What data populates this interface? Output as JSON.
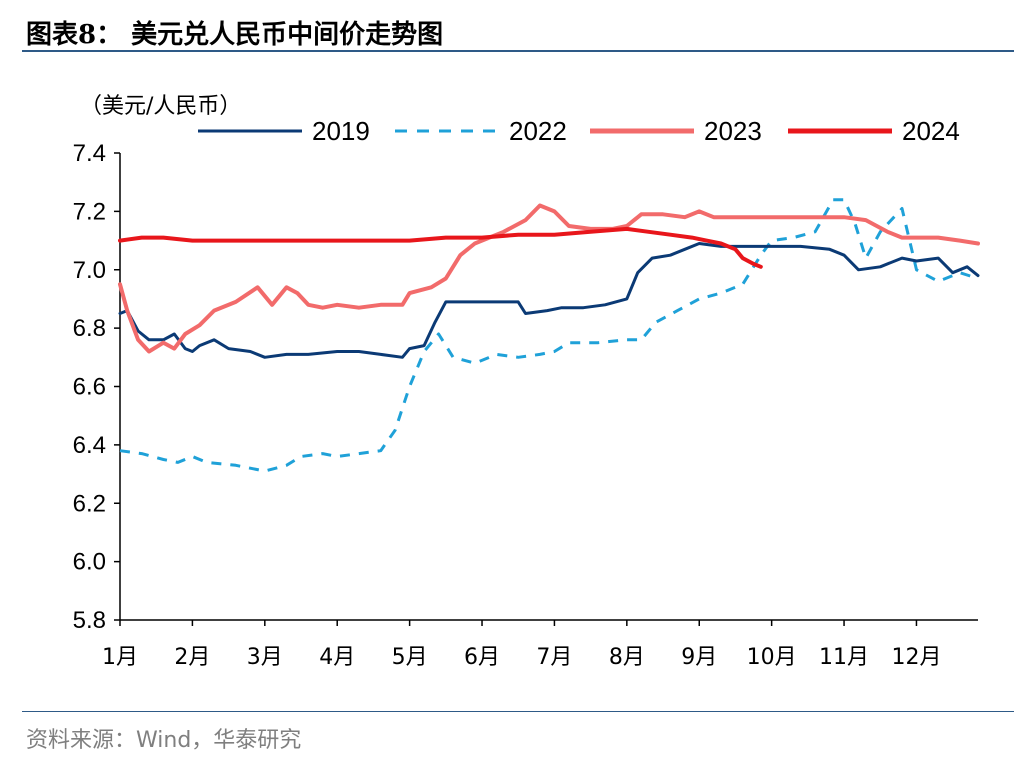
{
  "header": {
    "title": "图表8：  美元兑人民币中间价走势图"
  },
  "footer": {
    "source": "资料来源：Wind，华泰研究"
  },
  "chart_data": {
    "type": "line",
    "unit_label": "（美元/人民币）",
    "ylim": [
      5.8,
      7.4
    ],
    "yticks": [
      "7.4",
      "7.2",
      "7.0",
      "6.8",
      "6.6",
      "6.4",
      "6.2",
      "6.0",
      "5.8"
    ],
    "x_months": [
      "1月",
      "2月",
      "3月",
      "4月",
      "5月",
      "6月",
      "7月",
      "8月",
      "9月",
      "10月",
      "11月",
      "12月"
    ],
    "grid": false,
    "legend_position": "top",
    "series": [
      {
        "name": "2019",
        "color": "#0b3a75",
        "style": "solid",
        "points": [
          [
            1.0,
            6.85
          ],
          [
            1.1,
            6.86
          ],
          [
            1.25,
            6.79
          ],
          [
            1.4,
            6.76
          ],
          [
            1.6,
            6.76
          ],
          [
            1.75,
            6.78
          ],
          [
            1.9,
            6.73
          ],
          [
            2.0,
            6.72
          ],
          [
            2.1,
            6.74
          ],
          [
            2.3,
            6.76
          ],
          [
            2.5,
            6.73
          ],
          [
            2.8,
            6.72
          ],
          [
            3.0,
            6.7
          ],
          [
            3.3,
            6.71
          ],
          [
            3.6,
            6.71
          ],
          [
            4.0,
            6.72
          ],
          [
            4.3,
            6.72
          ],
          [
            4.6,
            6.71
          ],
          [
            4.9,
            6.7
          ],
          [
            5.0,
            6.73
          ],
          [
            5.2,
            6.74
          ],
          [
            5.35,
            6.82
          ],
          [
            5.5,
            6.89
          ],
          [
            5.8,
            6.89
          ],
          [
            6.1,
            6.89
          ],
          [
            6.5,
            6.89
          ],
          [
            6.6,
            6.85
          ],
          [
            6.9,
            6.86
          ],
          [
            7.1,
            6.87
          ],
          [
            7.4,
            6.87
          ],
          [
            7.7,
            6.88
          ],
          [
            8.0,
            6.9
          ],
          [
            8.15,
            6.99
          ],
          [
            8.35,
            7.04
          ],
          [
            8.6,
            7.05
          ],
          [
            8.8,
            7.07
          ],
          [
            9.0,
            7.09
          ],
          [
            9.3,
            7.08
          ],
          [
            9.6,
            7.08
          ],
          [
            10.0,
            7.08
          ],
          [
            10.4,
            7.08
          ],
          [
            10.8,
            7.07
          ],
          [
            11.0,
            7.05
          ],
          [
            11.2,
            7.0
          ],
          [
            11.5,
            7.01
          ],
          [
            11.8,
            7.04
          ],
          [
            12.0,
            7.03
          ],
          [
            12.3,
            7.04
          ],
          [
            12.5,
            6.99
          ],
          [
            12.7,
            7.01
          ],
          [
            12.85,
            6.98
          ]
        ]
      },
      {
        "name": "2022",
        "color": "#1fa1d8",
        "style": "dashed",
        "points": [
          [
            1.0,
            6.38
          ],
          [
            1.3,
            6.37
          ],
          [
            1.6,
            6.35
          ],
          [
            1.8,
            6.34
          ],
          [
            2.0,
            6.36
          ],
          [
            2.2,
            6.34
          ],
          [
            2.6,
            6.33
          ],
          [
            3.0,
            6.31
          ],
          [
            3.3,
            6.33
          ],
          [
            3.5,
            6.36
          ],
          [
            3.8,
            6.37
          ],
          [
            4.0,
            6.36
          ],
          [
            4.3,
            6.37
          ],
          [
            4.6,
            6.38
          ],
          [
            4.8,
            6.45
          ],
          [
            5.0,
            6.6
          ],
          [
            5.2,
            6.72
          ],
          [
            5.4,
            6.78
          ],
          [
            5.6,
            6.7
          ],
          [
            5.9,
            6.68
          ],
          [
            6.2,
            6.71
          ],
          [
            6.5,
            6.7
          ],
          [
            6.8,
            6.71
          ],
          [
            7.0,
            6.72
          ],
          [
            7.2,
            6.75
          ],
          [
            7.6,
            6.75
          ],
          [
            8.0,
            6.76
          ],
          [
            8.2,
            6.76
          ],
          [
            8.4,
            6.82
          ],
          [
            8.7,
            6.86
          ],
          [
            9.0,
            6.9
          ],
          [
            9.3,
            6.92
          ],
          [
            9.6,
            6.95
          ],
          [
            9.85,
            7.05
          ],
          [
            10.0,
            7.1
          ],
          [
            10.3,
            7.11
          ],
          [
            10.6,
            7.13
          ],
          [
            10.85,
            7.24
          ],
          [
            11.0,
            7.24
          ],
          [
            11.15,
            7.16
          ],
          [
            11.3,
            7.04
          ],
          [
            11.5,
            7.13
          ],
          [
            11.8,
            7.21
          ],
          [
            12.0,
            7.0
          ],
          [
            12.3,
            6.96
          ],
          [
            12.6,
            6.99
          ],
          [
            12.85,
            6.97
          ]
        ]
      },
      {
        "name": "2023",
        "color": "#f26b6b",
        "style": "solid",
        "points": [
          [
            1.0,
            6.95
          ],
          [
            1.1,
            6.86
          ],
          [
            1.25,
            6.76
          ],
          [
            1.4,
            6.72
          ],
          [
            1.6,
            6.75
          ],
          [
            1.75,
            6.73
          ],
          [
            1.9,
            6.78
          ],
          [
            2.1,
            6.81
          ],
          [
            2.3,
            6.86
          ],
          [
            2.6,
            6.89
          ],
          [
            2.9,
            6.94
          ],
          [
            3.1,
            6.88
          ],
          [
            3.3,
            6.94
          ],
          [
            3.45,
            6.92
          ],
          [
            3.6,
            6.88
          ],
          [
            3.8,
            6.87
          ],
          [
            4.0,
            6.88
          ],
          [
            4.3,
            6.87
          ],
          [
            4.6,
            6.88
          ],
          [
            4.9,
            6.88
          ],
          [
            5.0,
            6.92
          ],
          [
            5.3,
            6.94
          ],
          [
            5.5,
            6.97
          ],
          [
            5.7,
            7.05
          ],
          [
            5.9,
            7.09
          ],
          [
            6.1,
            7.11
          ],
          [
            6.3,
            7.13
          ],
          [
            6.6,
            7.17
          ],
          [
            6.8,
            7.22
          ],
          [
            7.0,
            7.2
          ],
          [
            7.2,
            7.15
          ],
          [
            7.5,
            7.14
          ],
          [
            7.8,
            7.14
          ],
          [
            8.0,
            7.15
          ],
          [
            8.2,
            7.19
          ],
          [
            8.5,
            7.19
          ],
          [
            8.8,
            7.18
          ],
          [
            9.0,
            7.2
          ],
          [
            9.2,
            7.18
          ],
          [
            9.5,
            7.18
          ],
          [
            10.0,
            7.18
          ],
          [
            10.5,
            7.18
          ],
          [
            11.0,
            7.18
          ],
          [
            11.3,
            7.17
          ],
          [
            11.6,
            7.13
          ],
          [
            11.8,
            7.11
          ],
          [
            12.0,
            7.11
          ],
          [
            12.3,
            7.11
          ],
          [
            12.6,
            7.1
          ],
          [
            12.85,
            7.09
          ]
        ]
      },
      {
        "name": "2024",
        "color": "#e8161b",
        "style": "solid",
        "points": [
          [
            1.0,
            7.1
          ],
          [
            1.3,
            7.11
          ],
          [
            1.6,
            7.11
          ],
          [
            2.0,
            7.1
          ],
          [
            2.5,
            7.1
          ],
          [
            3.0,
            7.1
          ],
          [
            3.5,
            7.1
          ],
          [
            4.0,
            7.1
          ],
          [
            4.5,
            7.1
          ],
          [
            5.0,
            7.1
          ],
          [
            5.5,
            7.11
          ],
          [
            6.0,
            7.11
          ],
          [
            6.5,
            7.12
          ],
          [
            7.0,
            7.12
          ],
          [
            7.5,
            7.13
          ],
          [
            8.0,
            7.14
          ],
          [
            8.3,
            7.13
          ],
          [
            8.6,
            7.12
          ],
          [
            8.9,
            7.11
          ],
          [
            9.1,
            7.1
          ],
          [
            9.3,
            7.09
          ],
          [
            9.5,
            7.07
          ],
          [
            9.6,
            7.04
          ],
          [
            9.75,
            7.02
          ],
          [
            9.85,
            7.01
          ]
        ]
      }
    ]
  }
}
